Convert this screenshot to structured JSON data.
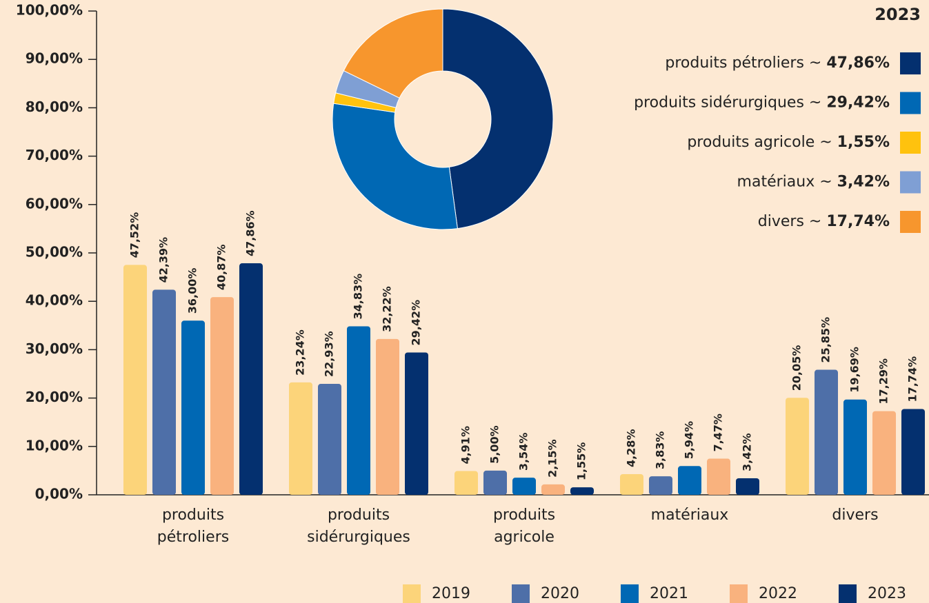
{
  "chart_data": [
    {
      "type": "bar",
      "categories": [
        "produits pétroliers",
        "produits sidérurgiques",
        "produits agricole",
        "matériaux",
        "divers"
      ],
      "series": [
        {
          "name": "2019",
          "color": "#fcd47a",
          "values": [
            47.52,
            23.24,
            4.91,
            4.28,
            20.05
          ],
          "value_labels": [
            "47,52%",
            "23,24%",
            "4,91%",
            "4,28%",
            "20,05%"
          ]
        },
        {
          "name": "2020",
          "color": "#4e6fa8",
          "values": [
            42.39,
            22.93,
            5.0,
            3.83,
            25.85
          ],
          "value_labels": [
            "42,39%",
            "22,93%",
            "5,00%",
            "3,83%",
            "25,85%"
          ]
        },
        {
          "name": "2021",
          "color": "#0068b4",
          "values": [
            36.0,
            34.83,
            3.54,
            5.94,
            19.69
          ],
          "value_labels": [
            "36,00%",
            "34,83%",
            "3,54%",
            "5,94%",
            "19,69%"
          ]
        },
        {
          "name": "2022",
          "color": "#f9b27e",
          "values": [
            40.87,
            32.22,
            2.15,
            7.47,
            17.29
          ],
          "value_labels": [
            "40,87%",
            "32,22%",
            "2,15%",
            "7,47%",
            "17,29%"
          ]
        },
        {
          "name": "2023",
          "color": "#04306f",
          "values": [
            47.86,
            29.42,
            1.55,
            3.42,
            17.74
          ],
          "value_labels": [
            "47,86%",
            "29,42%",
            "1,55%",
            "3,42%",
            "17,74%"
          ]
        }
      ],
      "ylim": [
        0,
        100
      ],
      "yticks": [
        {
          "value": 0,
          "label": "0,00%"
        },
        {
          "value": 10,
          "label": "10,00%"
        },
        {
          "value": 20,
          "label": "20,00%"
        },
        {
          "value": 30,
          "label": "30,00%"
        },
        {
          "value": 40,
          "label": "40,00%"
        },
        {
          "value": 50,
          "label": "50,00%"
        },
        {
          "value": 60,
          "label": "60,00%"
        },
        {
          "value": 70,
          "label": "70,00%"
        },
        {
          "value": 80,
          "label": "80,00%"
        },
        {
          "value": 90,
          "label": "90,00%"
        },
        {
          "value": 100,
          "label": "100,00%"
        }
      ],
      "legend": "bottom-right"
    },
    {
      "type": "pie",
      "donut": true,
      "title": "2023",
      "categories": [
        "produits pétroliers",
        "produits sidérurgiques",
        "produits agricole",
        "matériaux",
        "divers"
      ],
      "values": [
        47.86,
        29.42,
        1.55,
        3.42,
        17.74
      ],
      "value_labels": [
        "47,86%",
        "29,42%",
        "1,55%",
        "3,42%",
        "17,74%"
      ],
      "colors": [
        "#04306f",
        "#0068b4",
        "#ffc20e",
        "#7f9fd4",
        "#f7962d"
      ],
      "legend_separator": "~",
      "legend": "top-right"
    }
  ]
}
